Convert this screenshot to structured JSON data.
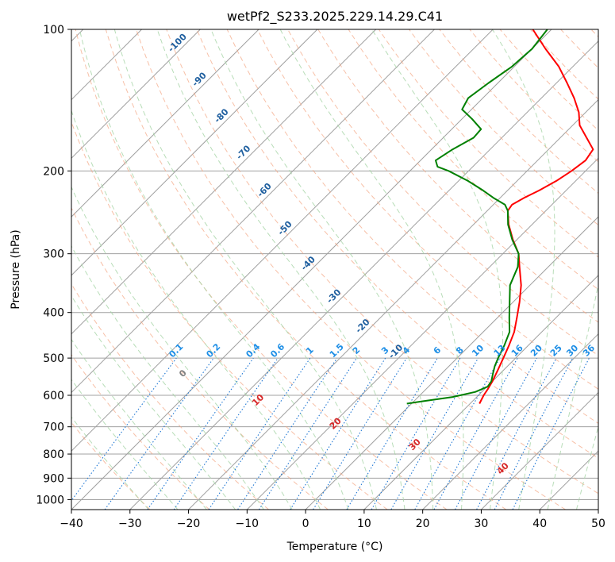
{
  "chart_data": {
    "type": "line",
    "title": "wetPf2_S233.2025.229.14.29.C41",
    "xlabel": "Temperature (°C)",
    "ylabel": "Pressure (hPa)",
    "xlim": [
      -40,
      50
    ],
    "ylim": [
      1050,
      100
    ],
    "skew_deg": 45,
    "x_ticks": [
      "−40",
      "−30",
      "−20",
      "−10",
      "0",
      "10",
      "20",
      "30",
      "40",
      "50"
    ],
    "x_tick_values": [
      -40,
      -30,
      -20,
      -10,
      0,
      10,
      20,
      30,
      40,
      50
    ],
    "y_ticks": [
      "100",
      "200",
      "300",
      "400",
      "500",
      "600",
      "700",
      "800",
      "900",
      "1000"
    ],
    "y_tick_values": [
      100,
      200,
      300,
      400,
      500,
      600,
      700,
      800,
      900,
      1000
    ],
    "colors": {
      "temperature": "#ff0000",
      "dewpoint": "#008000",
      "isotherm": "#a0a0a0",
      "dry_adiabat": "#f4a582",
      "moist_adiabat": "#a6d4a6",
      "mixing_ratio": "#1f77d4",
      "isobar": "#a0a0a0",
      "isotherm_label": "#1f5f9f",
      "dry_label": "#d62728",
      "mixing_label": "#1f8fe6"
    },
    "series": [
      {
        "name": "Temperature",
        "points": [
          {
            "p": 625,
            "t": 11.6
          },
          {
            "p": 600,
            "t": 10.9
          },
          {
            "p": 580,
            "t": 10.5
          },
          {
            "p": 560,
            "t": 10.0
          },
          {
            "p": 530,
            "t": 9.0
          },
          {
            "p": 500,
            "t": 7.9
          },
          {
            "p": 470,
            "t": 6.7
          },
          {
            "p": 440,
            "t": 5.3
          },
          {
            "p": 410,
            "t": 3.3
          },
          {
            "p": 380,
            "t": 1.1
          },
          {
            "p": 350,
            "t": -1.5
          },
          {
            "p": 320,
            "t": -4.9
          },
          {
            "p": 300,
            "t": -7.3
          },
          {
            "p": 280,
            "t": -10.7
          },
          {
            "p": 260,
            "t": -14.0
          },
          {
            "p": 243,
            "t": -16.5
          },
          {
            "p": 236,
            "t": -16.8
          },
          {
            "p": 228,
            "t": -15.9
          },
          {
            "p": 220,
            "t": -14.6
          },
          {
            "p": 210,
            "t": -13.3
          },
          {
            "p": 200,
            "t": -12.4
          },
          {
            "p": 190,
            "t": -11.8
          },
          {
            "p": 180,
            "t": -12.4
          },
          {
            "p": 170,
            "t": -15.5
          },
          {
            "p": 160,
            "t": -18.8
          },
          {
            "p": 150,
            "t": -21.2
          },
          {
            "p": 140,
            "t": -24.4
          },
          {
            "p": 130,
            "t": -28.2
          },
          {
            "p": 120,
            "t": -32.4
          },
          {
            "p": 110,
            "t": -37.7
          },
          {
            "p": 100,
            "t": -43.2
          }
        ]
      },
      {
        "name": "Dewpoint",
        "points": [
          {
            "p": 625,
            "t": -0.8
          },
          {
            "p": 618,
            "t": 1.4
          },
          {
            "p": 605,
            "t": 5.9
          },
          {
            "p": 590,
            "t": 8.9
          },
          {
            "p": 575,
            "t": 10.1
          },
          {
            "p": 560,
            "t": 9.8
          },
          {
            "p": 540,
            "t": 8.8
          },
          {
            "p": 520,
            "t": 7.8
          },
          {
            "p": 500,
            "t": 7.0
          },
          {
            "p": 470,
            "t": 5.9
          },
          {
            "p": 440,
            "t": 4.5
          },
          {
            "p": 410,
            "t": 2.0
          },
          {
            "p": 380,
            "t": -0.6
          },
          {
            "p": 350,
            "t": -3.4
          },
          {
            "p": 320,
            "t": -5.2
          },
          {
            "p": 300,
            "t": -7.3
          },
          {
            "p": 280,
            "t": -10.8
          },
          {
            "p": 260,
            "t": -14.1
          },
          {
            "p": 243,
            "t": -16.5
          },
          {
            "p": 236,
            "t": -18.0
          },
          {
            "p": 228,
            "t": -21.2
          },
          {
            "p": 220,
            "t": -24.2
          },
          {
            "p": 210,
            "t": -28.4
          },
          {
            "p": 200,
            "t": -33.4
          },
          {
            "p": 196,
            "t": -36.0
          },
          {
            "p": 190,
            "t": -37.4
          },
          {
            "p": 180,
            "t": -36.4
          },
          {
            "p": 170,
            "t": -34.8
          },
          {
            "p": 163,
            "t": -35.0
          },
          {
            "p": 155,
            "t": -38.3
          },
          {
            "p": 148,
            "t": -41.6
          },
          {
            "p": 140,
            "t": -42.5
          },
          {
            "p": 130,
            "t": -41.6
          },
          {
            "p": 120,
            "t": -40.4
          },
          {
            "p": 110,
            "t": -40.0
          },
          {
            "p": 100,
            "t": -40.7
          }
        ]
      }
    ],
    "dry_adiabat_labels": [
      {
        "text": "0",
        "theta": 0,
        "p": 540
      },
      {
        "text": "10",
        "theta": 10,
        "p": 615
      },
      {
        "text": "20",
        "theta": 20,
        "p": 690
      },
      {
        "text": "30",
        "theta": 30,
        "p": 765
      },
      {
        "text": "40",
        "theta": 40,
        "p": 860
      }
    ],
    "moist_adiabat_labels": [
      {
        "text": "-100",
        "t": -101.5,
        "p": 107
      },
      {
        "text": "-90",
        "t": -91.5,
        "p": 128
      },
      {
        "text": "-80",
        "t": -81.5,
        "p": 153
      },
      {
        "text": "-70",
        "t": -71.5,
        "p": 183
      },
      {
        "text": "-60",
        "t": -61.5,
        "p": 220
      },
      {
        "text": "-50",
        "t": -51.5,
        "p": 265
      },
      {
        "text": "-40",
        "t": -41.5,
        "p": 315
      },
      {
        "text": "-30",
        "t": -31.5,
        "p": 370
      },
      {
        "text": "-20",
        "t": -21.5,
        "p": 428
      },
      {
        "text": "-10",
        "t": -11.5,
        "p": 485
      }
    ],
    "mixing_ratio_labels": [
      "0.1",
      "0.2",
      "0.4",
      "0.6",
      "1",
      "1.5",
      "2",
      "3",
      "4",
      "6",
      "8",
      "10",
      "13",
      "16",
      "20",
      "25",
      "30",
      "36"
    ],
    "mixing_ratio_values": [
      0.1,
      0.2,
      0.4,
      0.6,
      1,
      1.5,
      2,
      3,
      4,
      6,
      8,
      10,
      13,
      16,
      20,
      25,
      30,
      36
    ]
  }
}
